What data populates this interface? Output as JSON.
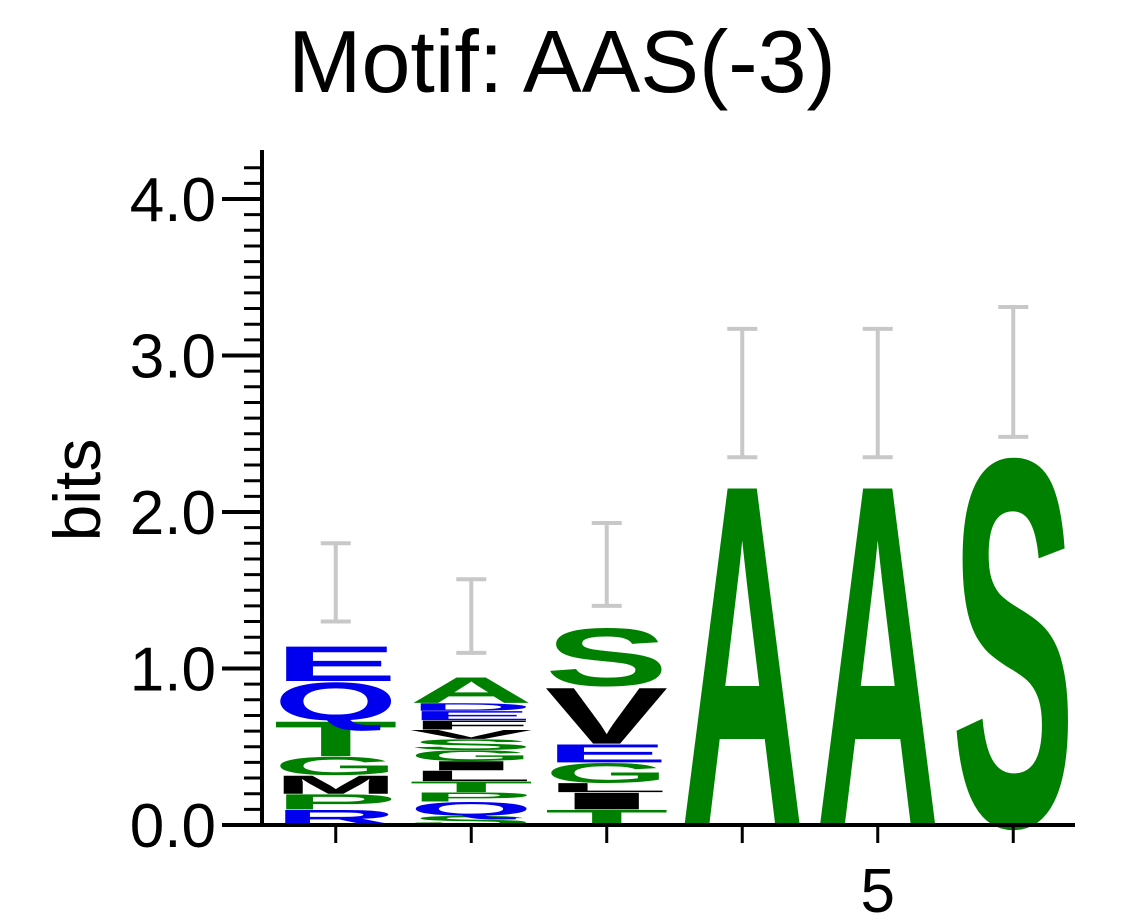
{
  "chart_data": {
    "type": "sequence_logo",
    "title": "Motif: AAS(-3)",
    "ylabel": "bits",
    "xlabel": "",
    "ylim": [
      0,
      4.3
    ],
    "y_ticks": [
      "0.0",
      "1.0",
      "2.0",
      "3.0",
      "4.0"
    ],
    "y_tick_values": [
      0,
      1,
      2,
      3,
      4
    ],
    "x_tick_labels": [
      {
        "position": 5,
        "label": "5"
      }
    ],
    "colors": {
      "acidic": "#0000ee",
      "polar": "#008000",
      "hydrophobic": "#000000"
    },
    "positions": [
      {
        "index": 1,
        "letters": [
          {
            "letter": "R",
            "bits": 0.1,
            "color": "#0000ee"
          },
          {
            "letter": "P",
            "bits": 0.1,
            "color": "#008000"
          },
          {
            "letter": "M",
            "bits": 0.12,
            "color": "#000000"
          },
          {
            "letter": "G",
            "bits": 0.12,
            "color": "#008000"
          },
          {
            "letter": "T",
            "bits": 0.23,
            "color": "#008000"
          },
          {
            "letter": "Q",
            "bits": 0.25,
            "color": "#0000ee"
          },
          {
            "letter": "E",
            "bits": 0.23,
            "color": "#0000ee"
          }
        ],
        "error": [
          1.3,
          1.8
        ]
      },
      {
        "index": 2,
        "letters": [
          {
            "letter": "S",
            "bits": 0.06,
            "color": "#008000"
          },
          {
            "letter": "Q",
            "bits": 0.09,
            "color": "#0000ee"
          },
          {
            "letter": "P",
            "bits": 0.06,
            "color": "#008000"
          },
          {
            "letter": "T",
            "bits": 0.07,
            "color": "#008000"
          },
          {
            "letter": "L",
            "bits": 0.07,
            "color": "#000000"
          },
          {
            "letter": "I",
            "bits": 0.06,
            "color": "#000000"
          },
          {
            "letter": "G",
            "bits": 0.07,
            "color": "#008000"
          },
          {
            "letter": "S",
            "bits": 0.07,
            "color": "#008000"
          },
          {
            "letter": "V",
            "bits": 0.06,
            "color": "#000000"
          },
          {
            "letter": "F",
            "bits": 0.06,
            "color": "#000000"
          },
          {
            "letter": "E",
            "bits": 0.06,
            "color": "#0000ee"
          },
          {
            "letter": "D",
            "bits": 0.05,
            "color": "#0000ee"
          },
          {
            "letter": "A",
            "bits": 0.17,
            "color": "#008000"
          }
        ],
        "error": [
          1.1,
          1.57
        ]
      },
      {
        "index": 3,
        "letters": [
          {
            "letter": "T",
            "bits": 0.1,
            "color": "#008000"
          },
          {
            "letter": "I",
            "bits": 0.11,
            "color": "#000000"
          },
          {
            "letter": "L",
            "bits": 0.06,
            "color": "#000000"
          },
          {
            "letter": "G",
            "bits": 0.13,
            "color": "#008000"
          },
          {
            "letter": "E",
            "bits": 0.12,
            "color": "#0000ee"
          },
          {
            "letter": "V",
            "bits": 0.37,
            "color": "#000000"
          },
          {
            "letter": "S",
            "bits": 0.38,
            "color": "#008000"
          }
        ],
        "error": [
          1.4,
          1.93
        ]
      },
      {
        "index": 4,
        "letters": [
          {
            "letter": "A",
            "bits": 2.25,
            "color": "#008000"
          }
        ],
        "error": [
          2.35,
          3.17
        ]
      },
      {
        "index": 5,
        "letters": [
          {
            "letter": "A",
            "bits": 2.25,
            "color": "#008000"
          }
        ],
        "error": [
          2.35,
          3.17
        ]
      },
      {
        "index": 6,
        "letters": [
          {
            "letter": "S",
            "bits": 2.42,
            "color": "#008000"
          }
        ],
        "error": [
          2.48,
          3.31
        ]
      }
    ]
  }
}
